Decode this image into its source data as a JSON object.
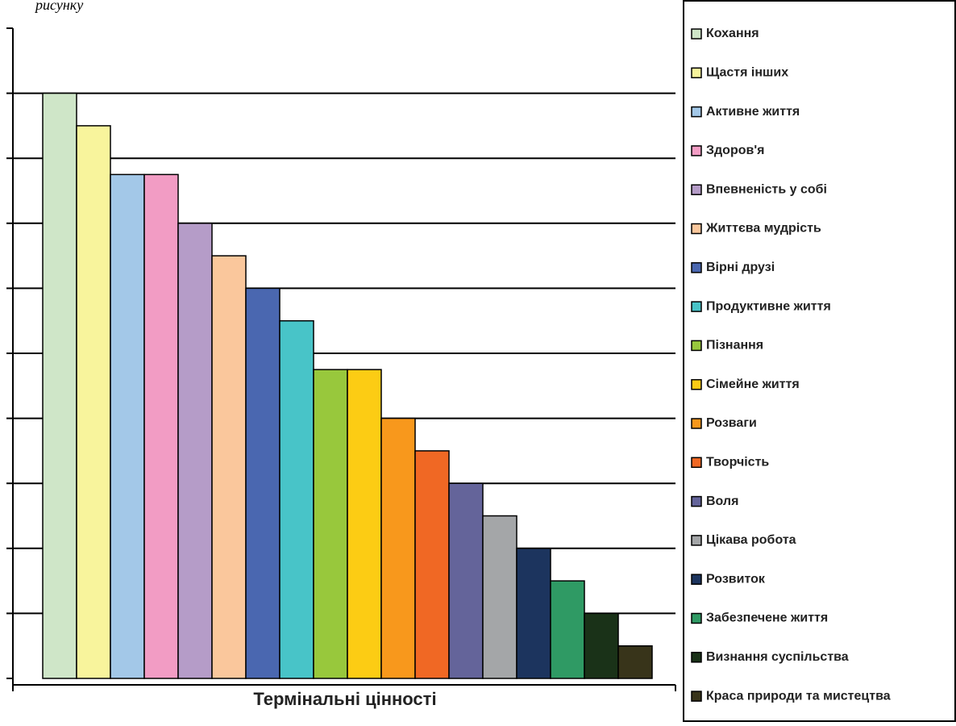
{
  "chart_data": {
    "type": "bar",
    "caption": "рисунку",
    "x_label": "Термінальні цінності",
    "categories": [
      "Кохання",
      "Щастя інших",
      "Активне життя",
      "Здоров'я",
      "Впевненість у собі",
      "Життєва мудрість",
      "Вірні друзі",
      "Продуктивне життя",
      "Пізнання",
      "Сімейне життя",
      "Розваги",
      "Творчість",
      "Воля",
      "Цікава робота",
      "Розвиток",
      "Забезпечене життя",
      "Визнання суспільства",
      "Краса природи та мистецтва"
    ],
    "values": [
      9,
      8.5,
      7.75,
      7.75,
      7,
      6.5,
      6,
      5.5,
      4.75,
      4.75,
      4,
      3.5,
      3,
      2.5,
      2,
      1.5,
      1,
      0.5
    ],
    "colors": [
      "#cfe6c8",
      "#f8f49c",
      "#a3c8e8",
      "#f29cc4",
      "#b59cc8",
      "#fac79c",
      "#4a67b0",
      "#48c4c8",
      "#98c83c",
      "#fccc14",
      "#f8981c",
      "#f06824",
      "#64649a",
      "#a4a6a8",
      "#1c345e",
      "#2f9a64",
      "#1a3218",
      "#38341a"
    ],
    "ylim": [
      0,
      10
    ],
    "yticks": [
      0,
      1,
      2,
      3,
      4,
      5,
      6,
      7,
      8,
      9,
      10
    ],
    "tick_labels": false,
    "grid": true,
    "legend": "right"
  }
}
